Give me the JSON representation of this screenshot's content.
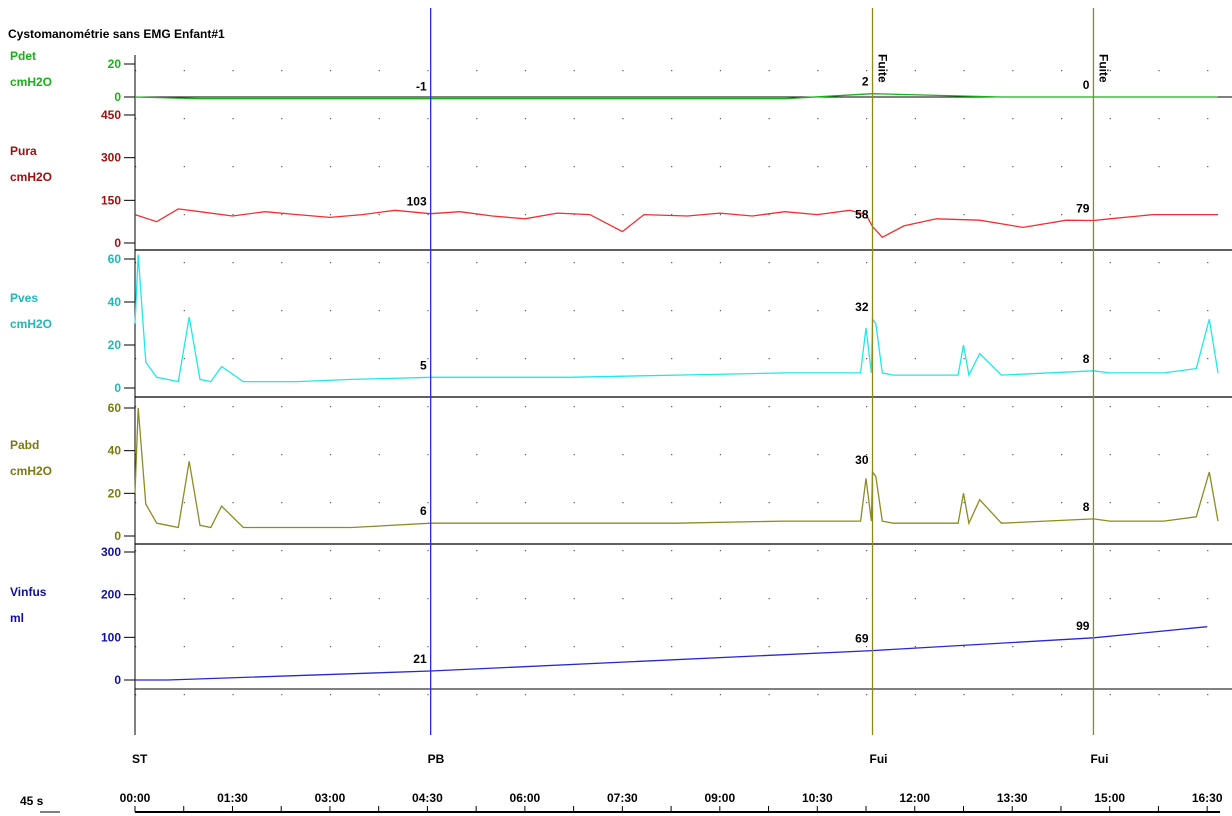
{
  "title": "Cystomanométrie sans EMG Enfant#1",
  "colors": {
    "pdet": "#17b217",
    "pura": "#a01010",
    "pura_line": "#f03030",
    "pves": "#20b8b8",
    "pves_line": "#20e8e8",
    "pabd": "#7a7a10",
    "pabd_line": "#8c8c20",
    "vinfus": "#1010a0",
    "vinfus_line": "#2828d0",
    "event_pb": "#2a2ae0",
    "event_fui": "#8a8a20"
  },
  "channels": [
    {
      "key": "pdet",
      "name": "Pdet",
      "unit": "cmH2O",
      "ticks": [
        "20",
        "0"
      ]
    },
    {
      "key": "pura",
      "name": "Pura",
      "unit": "cmH2O",
      "ticks": [
        "450",
        "300",
        "150",
        "0"
      ]
    },
    {
      "key": "pves",
      "name": "Pves",
      "unit": "cmH2O",
      "ticks": [
        "60",
        "40",
        "20",
        "0"
      ]
    },
    {
      "key": "pabd",
      "name": "Pabd",
      "unit": "cmH2O",
      "ticks": [
        "60",
        "40",
        "20",
        "0"
      ]
    },
    {
      "key": "vinfus",
      "name": "Vinfus",
      "unit": "ml",
      "ticks": [
        "300",
        "200",
        "100",
        "0"
      ]
    }
  ],
  "events": [
    {
      "label": "ST",
      "time_s": 0
    },
    {
      "label": "PB",
      "time_s": 273
    },
    {
      "label": "Fui",
      "time_s": 681
    },
    {
      "label": "Fui",
      "time_s": 885
    }
  ],
  "event_annotations": [
    "Fuite",
    "Fuite"
  ],
  "readouts": {
    "pdet": [
      "-1",
      "2",
      "0"
    ],
    "pura": [
      "103",
      "58",
      "79"
    ],
    "pves": [
      "5",
      "32",
      "8"
    ],
    "pabd": [
      "6",
      "30",
      "8"
    ],
    "vinfus": [
      "21",
      "69",
      "99"
    ]
  },
  "time_axis": {
    "scale_label": "45 s",
    "labels": [
      "00:00",
      "01:30",
      "03:00",
      "04:30",
      "06:00",
      "07:30",
      "09:00",
      "10:30",
      "12:00",
      "13:30",
      "15:00",
      "16:30"
    ],
    "max_s": 990
  },
  "chart_data": {
    "type": "line",
    "title": "Cystomanométrie sans EMG Enfant#1",
    "xlabel": "",
    "x_unit": "s",
    "xlim": [
      0,
      1000
    ],
    "grid": true,
    "series": [
      {
        "name": "Pdet",
        "unit": "cmH2O",
        "ylim": [
          -10,
          30
        ],
        "baseline": 0,
        "x": [
          0,
          60,
          273,
          400,
          600,
          681,
          800,
          885,
          1000
        ],
        "y": [
          0,
          -1,
          -1,
          -1,
          -1,
          2,
          0,
          0,
          0
        ]
      },
      {
        "name": "Pura",
        "unit": "cmH2O",
        "ylim": [
          0,
          450
        ],
        "x": [
          0,
          20,
          40,
          60,
          90,
          120,
          150,
          180,
          210,
          240,
          273,
          300,
          330,
          360,
          390,
          420,
          450,
          470,
          510,
          540,
          570,
          600,
          630,
          660,
          675,
          681,
          690,
          710,
          740,
          780,
          820,
          860,
          885,
          900,
          940,
          980,
          1000
        ],
        "y": [
          100,
          75,
          120,
          110,
          95,
          110,
          100,
          90,
          100,
          115,
          103,
          110,
          95,
          85,
          105,
          100,
          40,
          100,
          95,
          105,
          95,
          110,
          100,
          115,
          100,
          58,
          20,
          60,
          85,
          80,
          55,
          80,
          79,
          85,
          100,
          100,
          100
        ]
      },
      {
        "name": "Pves",
        "unit": "cmH2O",
        "ylim": [
          0,
          60
        ],
        "x": [
          0,
          3,
          10,
          20,
          30,
          40,
          50,
          60,
          70,
          80,
          100,
          150,
          200,
          273,
          350,
          400,
          500,
          600,
          670,
          675,
          680,
          681,
          684,
          690,
          700,
          760,
          765,
          770,
          780,
          800,
          885,
          900,
          950,
          980,
          992,
          1000
        ],
        "y": [
          30,
          62,
          12,
          5,
          4,
          3,
          33,
          4,
          3,
          10,
          3,
          3,
          4,
          5,
          5,
          5,
          6,
          7,
          7,
          28,
          7,
          32,
          30,
          7,
          6,
          6,
          20,
          6,
          16,
          6,
          8,
          7,
          7,
          9,
          32,
          7
        ]
      },
      {
        "name": "Pabd",
        "unit": "cmH2O",
        "ylim": [
          0,
          60
        ],
        "x": [
          0,
          3,
          10,
          20,
          30,
          40,
          50,
          60,
          70,
          80,
          100,
          150,
          200,
          273,
          350,
          400,
          500,
          600,
          670,
          675,
          680,
          681,
          684,
          690,
          700,
          760,
          765,
          770,
          780,
          800,
          885,
          900,
          950,
          980,
          992,
          1000
        ],
        "y": [
          20,
          60,
          15,
          6,
          5,
          4,
          35,
          5,
          4,
          14,
          4,
          4,
          4,
          6,
          6,
          6,
          6,
          7,
          7,
          27,
          7,
          30,
          28,
          7,
          6,
          6,
          20,
          6,
          17,
          6,
          8,
          7,
          7,
          9,
          30,
          7
        ]
      },
      {
        "name": "Vinfus",
        "unit": "ml",
        "ylim": [
          -70,
          300
        ],
        "x": [
          0,
          30,
          273,
          681,
          885,
          990
        ],
        "y": [
          0,
          0,
          21,
          69,
          99,
          125
        ]
      }
    ]
  }
}
